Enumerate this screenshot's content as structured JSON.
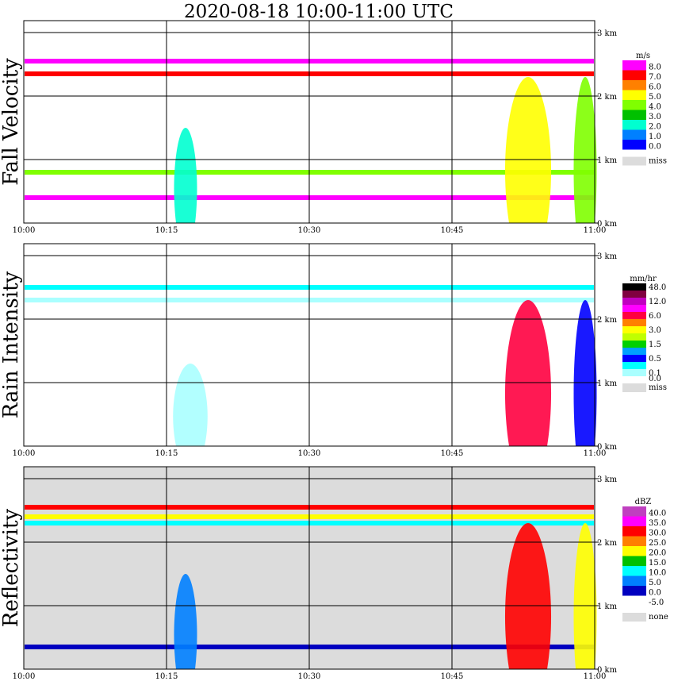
{
  "title": "2020-08-18   10:00-11:00 UTC",
  "x_ticks": [
    "10:00",
    "10:15",
    "10:30",
    "10:45",
    "11:00"
  ],
  "height_ticks": [
    "3 km",
    "2 km",
    "1 km",
    "0 km"
  ],
  "colors": {
    "axes": "#000000",
    "missing": "#dcdcdc"
  },
  "panels": [
    {
      "ylabel": "Fall Velocity",
      "legend_title": "m/s",
      "legend": [
        {
          "label": "8.0",
          "color": "#ff00ff"
        },
        {
          "label": "7.0",
          "color": "#ff0000"
        },
        {
          "label": "6.0",
          "color": "#ff8000"
        },
        {
          "label": "5.0",
          "color": "#ffff00"
        },
        {
          "label": "4.0",
          "color": "#80ff00"
        },
        {
          "label": "3.0",
          "color": "#00c000"
        },
        {
          "label": "2.0",
          "color": "#00ffd0"
        },
        {
          "label": "1.0",
          "color": "#0080ff"
        },
        {
          "label": "0.0",
          "color": "#0000ff"
        }
      ],
      "missing_label": "miss"
    },
    {
      "ylabel": "Rain Intensity",
      "legend_title": "mm/hr",
      "legend": [
        {
          "label": "48.0",
          "color": "#000000"
        },
        {
          "label": "",
          "color": "#800040"
        },
        {
          "label": "12.0",
          "color": "#c000c0"
        },
        {
          "label": "",
          "color": "#ff00ff"
        },
        {
          "label": "6.0",
          "color": "#ff0040"
        },
        {
          "label": "",
          "color": "#ff8000"
        },
        {
          "label": "3.0",
          "color": "#ffff00"
        },
        {
          "label": "",
          "color": "#c0ff00"
        },
        {
          "label": "1.5",
          "color": "#00d000"
        },
        {
          "label": "",
          "color": "#00a0ff"
        },
        {
          "label": "0.5",
          "color": "#0000ff"
        },
        {
          "label": "",
          "color": "#00ffff"
        },
        {
          "label": "0.1",
          "color": "#aaffff"
        }
      ],
      "missing_label": "miss",
      "zero_label": "0.0"
    },
    {
      "ylabel": "Reflectivity",
      "legend_title": "dBZ",
      "legend": [
        {
          "label": "40.0",
          "color": "#c040c0"
        },
        {
          "label": "35.0",
          "color": "#ff00ff"
        },
        {
          "label": "30.0",
          "color": "#ff0000"
        },
        {
          "label": "25.0",
          "color": "#ff8000"
        },
        {
          "label": "20.0",
          "color": "#ffff00"
        },
        {
          "label": "15.0",
          "color": "#00c000"
        },
        {
          "label": "10.0",
          "color": "#00ffff"
        },
        {
          "label": "5.0",
          "color": "#0080ff"
        },
        {
          "label": "0.0",
          "color": "#0000c0"
        },
        {
          "label": "-5.0",
          "color": "#ffffff"
        }
      ],
      "missing_label": "none"
    }
  ],
  "chart_data": [
    {
      "type": "heatmap",
      "title": "2020-08-18   10:00-11:00 UTC",
      "ylabel": "Fall Velocity",
      "units": "m/s",
      "xlim": [
        "10:00",
        "11:00"
      ],
      "ylim_km": [
        0,
        3.2
      ],
      "features": [
        {
          "kind": "layer",
          "height_km": 2.55,
          "value": 8.0
        },
        {
          "kind": "layer",
          "height_km": 2.35,
          "value": 7.0
        },
        {
          "kind": "layer",
          "height_km": 0.8,
          "value": 4.5
        },
        {
          "kind": "layer",
          "height_km": 0.4,
          "value": 8.0
        },
        {
          "kind": "cell",
          "time_from": "10:16",
          "time_to": "10:18",
          "top_km": 1.5,
          "value": 2.5
        },
        {
          "kind": "cell",
          "time_from": "10:51",
          "time_to": "10:55",
          "top_km": 2.3,
          "value": 5.5
        },
        {
          "kind": "cell",
          "time_from": "10:58",
          "time_to": "11:00",
          "top_km": 2.3,
          "value": 4.0
        }
      ]
    },
    {
      "type": "heatmap",
      "ylabel": "Rain Intensity",
      "units": "mm/hr",
      "xlim": [
        "10:00",
        "11:00"
      ],
      "ylim_km": [
        0,
        3.2
      ],
      "features": [
        {
          "kind": "layer",
          "height_km": 2.5,
          "value": 0.3
        },
        {
          "kind": "layer",
          "height_km": 2.3,
          "value": 0.1
        },
        {
          "kind": "cell",
          "time_from": "10:16",
          "time_to": "10:19",
          "top_km": 1.3,
          "value": 0.1
        },
        {
          "kind": "cell",
          "time_from": "10:51",
          "time_to": "10:55",
          "top_km": 2.3,
          "value": 6.0
        },
        {
          "kind": "cell",
          "time_from": "10:58",
          "time_to": "11:00",
          "top_km": 2.3,
          "value": 0.5
        }
      ]
    },
    {
      "type": "heatmap",
      "ylabel": "Reflectivity",
      "units": "dBZ",
      "xlim": [
        "10:00",
        "11:00"
      ],
      "ylim_km": [
        0,
        3.2
      ],
      "features": [
        {
          "kind": "layer",
          "height_km": 2.55,
          "value": 30.0
        },
        {
          "kind": "layer",
          "height_km": 2.4,
          "value": 20.0
        },
        {
          "kind": "layer",
          "height_km": 2.3,
          "value": 12.0
        },
        {
          "kind": "layer",
          "height_km": 0.35,
          "value": 0.0
        },
        {
          "kind": "cell",
          "time_from": "10:16",
          "time_to": "10:18",
          "top_km": 1.5,
          "value": 7.0
        },
        {
          "kind": "cell",
          "time_from": "10:51",
          "time_to": "10:55",
          "top_km": 2.3,
          "value": 30.0
        },
        {
          "kind": "cell",
          "time_from": "10:58",
          "time_to": "11:00",
          "top_km": 2.3,
          "value": 20.0
        }
      ]
    }
  ]
}
